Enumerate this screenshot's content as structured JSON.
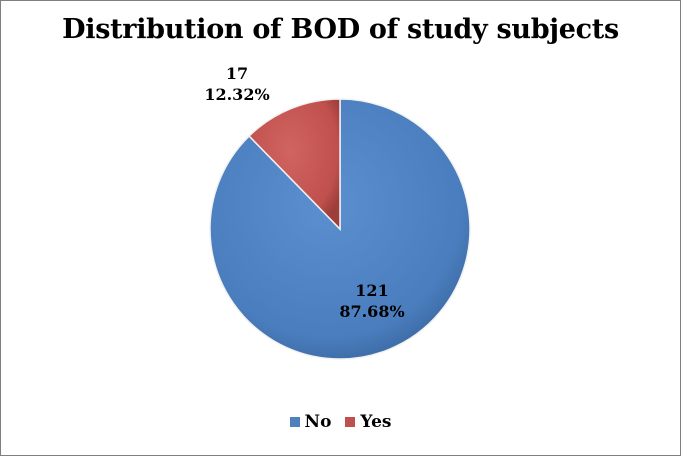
{
  "chart_data": {
    "type": "pie",
    "title": "Distribution of BOD of study subjects",
    "categories": [
      "No",
      "Yes"
    ],
    "values": [
      121,
      17
    ],
    "percent_labels": [
      "87.68%",
      "12.32%"
    ],
    "colors": [
      "#4f81bd",
      "#c0504d"
    ],
    "legend_position": "bottom"
  }
}
